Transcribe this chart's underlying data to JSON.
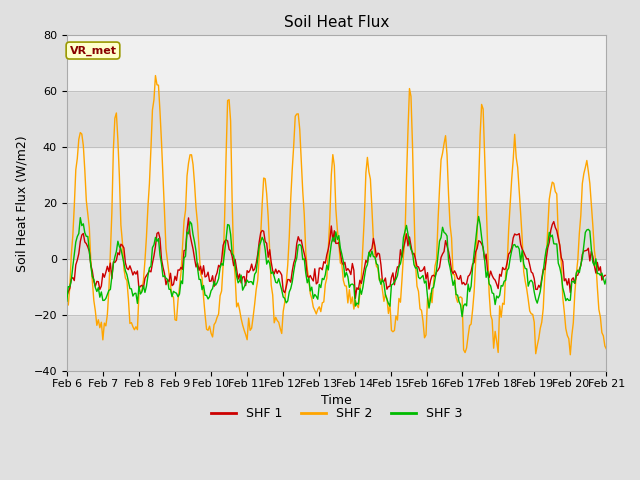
{
  "title": "Soil Heat Flux",
  "ylabel": "Soil Heat Flux (W/m2)",
  "xlabel": "Time",
  "ylim": [
    -40,
    80
  ],
  "yticks": [
    -40,
    -20,
    0,
    20,
    40,
    60,
    80
  ],
  "n_days": 15,
  "shf1_color": "#cc0000",
  "shf2_color": "#ffa500",
  "shf3_color": "#00bb00",
  "shf1_label": "SHF 1",
  "shf2_label": "SHF 2",
  "shf3_label": "SHF 3",
  "linewidth": 1.0,
  "fig_bg_color": "#e0e0e0",
  "plot_bg_color": "#f0f0f0",
  "band_dark_color": "#dcdcdc",
  "band_light_color": "#f0f0f0",
  "grid_color": "#c0c0c0",
  "vr_met_label": "VR_met",
  "vr_met_facecolor": "#ffffcc",
  "vr_met_edgecolor": "#999900",
  "vr_met_textcolor": "#880000",
  "x_tick_labels": [
    "Feb 6",
    "Feb 7",
    "Feb 8",
    "Feb 9",
    "Feb 10",
    "Feb 11",
    "Feb 12",
    "Feb 13",
    "Feb 14",
    "Feb 15",
    "Feb 16",
    "Feb 17",
    "Feb 18",
    "Feb 19",
    "Feb 20",
    "Feb 21"
  ],
  "title_fontsize": 11,
  "axis_fontsize": 9,
  "tick_fontsize": 8,
  "legend_fontsize": 9,
  "seed": 123
}
